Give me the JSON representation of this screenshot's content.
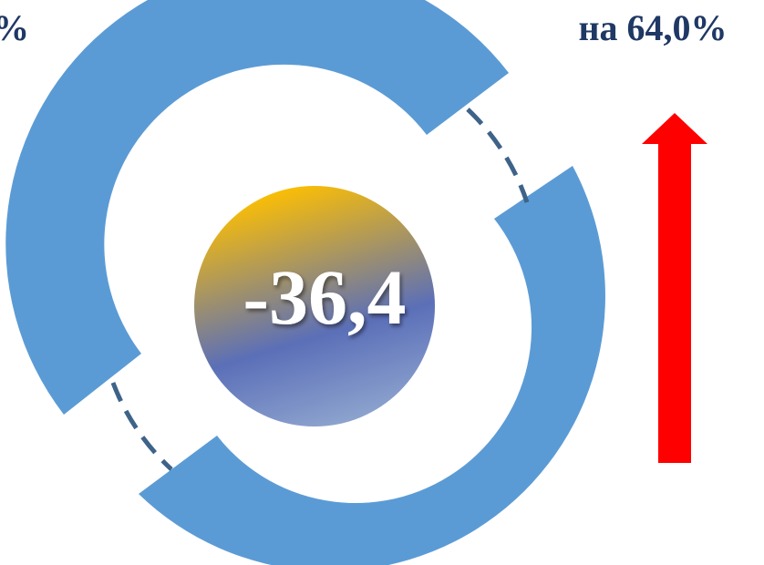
{
  "labels": {
    "left_fragment": "%",
    "top_right": "на 64,0%",
    "center_value": "-36,4"
  },
  "colors": {
    "ring": "#5B9BD5",
    "dashes": "#3E6389",
    "label": "#1F3864",
    "arrow": "#FF0000",
    "center_text": "#FFFFFF",
    "gradient_top": "#FFC000",
    "gradient_mid": "#5B6FB8",
    "gradient_bottom": "#8FA6CF"
  },
  "arrow": {
    "direction": "up"
  }
}
